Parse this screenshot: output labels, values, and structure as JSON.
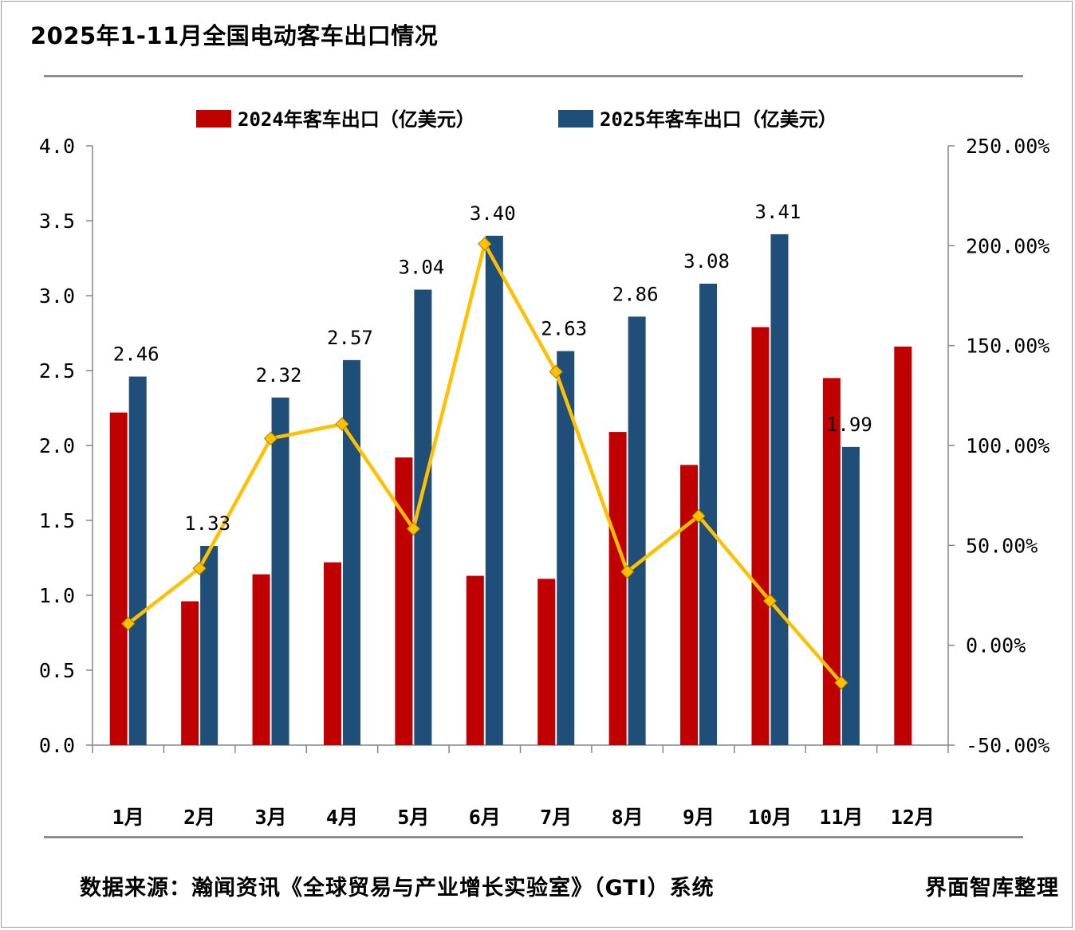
{
  "title": "2025年1-11月全国电动客车出口情况",
  "source": "数据来源：瀚闻资讯《全球贸易与产业增长实验室》（GTI）系统",
  "credit": "界面智库整理",
  "colors": {
    "series_2024": "#C00000",
    "series_2025": "#1F4E79",
    "growth_line": "#FFC000",
    "axis": "#868686"
  },
  "chart_data": {
    "type": "bar",
    "categories": [
      "1月",
      "2月",
      "3月",
      "4月",
      "5月",
      "6月",
      "7月",
      "8月",
      "9月",
      "10月",
      "11月",
      "12月"
    ],
    "series": [
      {
        "name": "2024年客车出口（亿美元）",
        "axis": "left",
        "values": [
          2.22,
          0.96,
          1.14,
          1.22,
          1.92,
          1.13,
          1.11,
          2.09,
          1.87,
          2.79,
          2.45,
          2.66
        ]
      },
      {
        "name": "2025年客车出口（亿美元）",
        "axis": "left",
        "values": [
          2.46,
          1.33,
          2.32,
          2.57,
          3.04,
          3.4,
          2.63,
          2.86,
          3.08,
          3.41,
          1.99,
          null
        ],
        "labels": [
          "2.46",
          "1.33",
          "2.32",
          "2.57",
          "3.04",
          "3.40",
          "2.63",
          "2.86",
          "3.08",
          "3.41",
          "1.99",
          ""
        ]
      },
      {
        "type": "line",
        "axis": "right",
        "values": [
          10.8,
          38.5,
          103.5,
          110.7,
          58.3,
          200.9,
          136.9,
          36.8,
          64.7,
          22.2,
          -18.8,
          null
        ]
      }
    ],
    "left_axis": {
      "ylim": [
        0,
        4
      ],
      "ticks": [
        "0.0",
        "0.5",
        "1.0",
        "1.5",
        "2.0",
        "2.5",
        "3.0",
        "3.5",
        "4.0"
      ]
    },
    "right_axis": {
      "ylim": [
        -50,
        250
      ],
      "ticks": [
        "-50.00%",
        "0.00%",
        "50.00%",
        "100.00%",
        "150.00%",
        "200.00%",
        "250.00%"
      ]
    },
    "legend": "top",
    "grid": false
  }
}
